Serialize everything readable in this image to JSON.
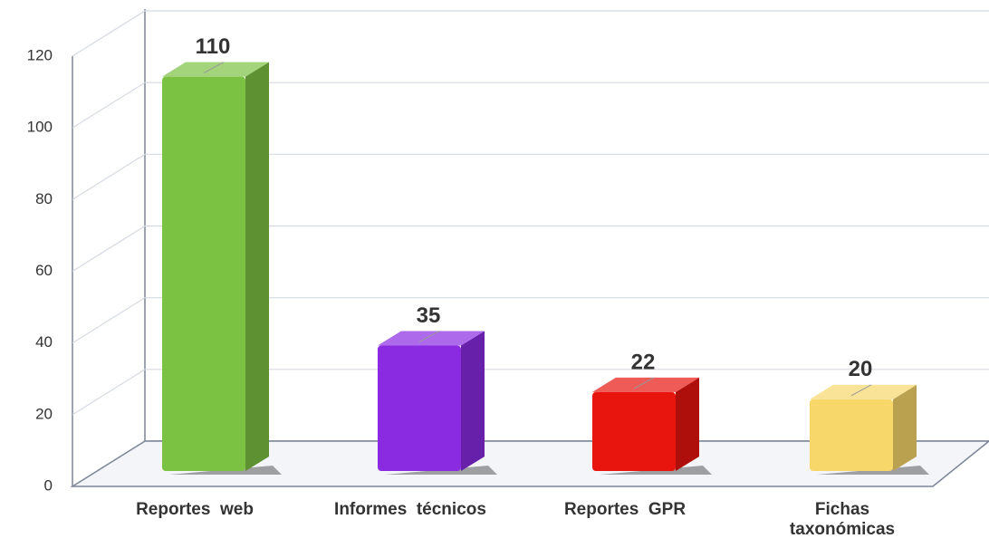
{
  "chart_data": {
    "type": "bar3d",
    "categories": [
      "Reportes  web",
      "Informes  técnicos",
      "Reportes  GPR",
      "Fichas taxonómicas"
    ],
    "values": [
      110,
      35,
      22,
      20
    ],
    "colors": [
      "#7cc242",
      "#8a2be2",
      "#e8150f",
      "#f7d76a"
    ],
    "ylim": [
      0,
      120
    ],
    "yticks": [
      0,
      20,
      40,
      60,
      80,
      100,
      120
    ],
    "grid": true
  }
}
